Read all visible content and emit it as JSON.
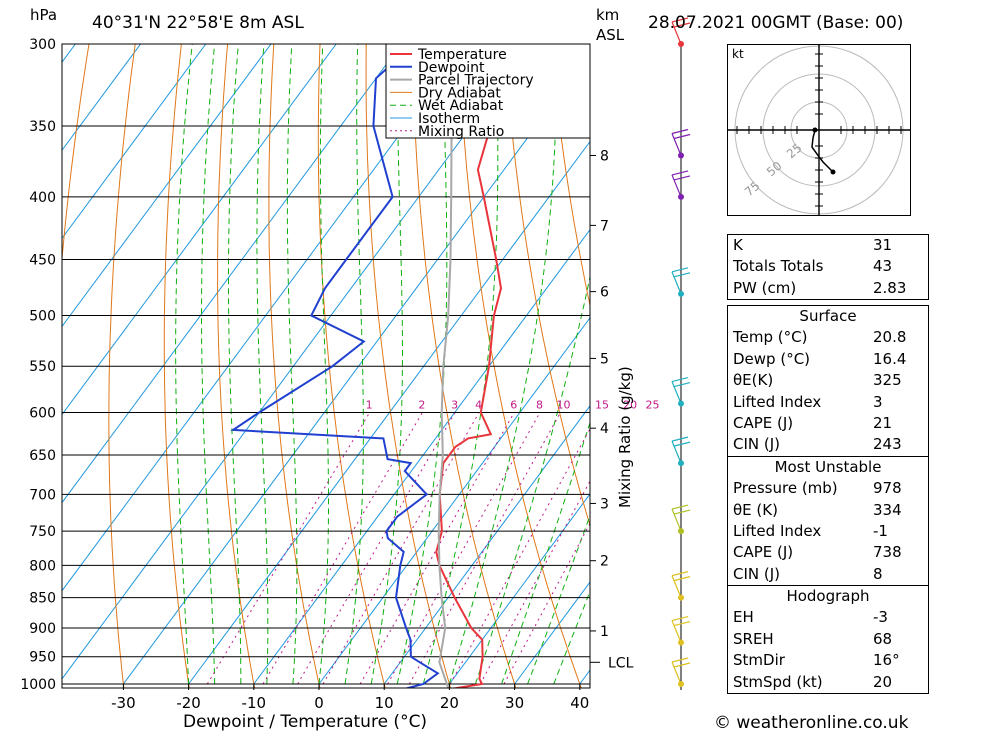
{
  "header": {
    "unit_hpa": "hPa",
    "location": "40°31'N  22°58'E  8m  ASL",
    "unit_km": "km",
    "unit_asl": "ASL",
    "datetime": "28.07.2021  00GMT  (Base: 00)"
  },
  "footer": {
    "copyright": "© weatheronline.co.uk"
  },
  "hodograph": {
    "unit": "kt",
    "ring_labels": [
      "25",
      "50",
      "75"
    ]
  },
  "indices": {
    "k": {
      "label": "K",
      "value": "31"
    },
    "tt": {
      "label": "Totals Totals",
      "value": "43"
    },
    "pw": {
      "label": "PW (cm)",
      "value": "2.83"
    }
  },
  "surface": {
    "title": "Surface",
    "rows": [
      {
        "label": "Temp (°C)",
        "value": "20.8"
      },
      {
        "label": "Dewp (°C)",
        "value": "16.4"
      },
      {
        "label": "θE(K)",
        "value": "325"
      },
      {
        "label": "Lifted Index",
        "value": "3"
      },
      {
        "label": "CAPE (J)",
        "value": "21"
      },
      {
        "label": "CIN (J)",
        "value": "243"
      }
    ]
  },
  "most_unstable": {
    "title": "Most Unstable",
    "rows": [
      {
        "label": "Pressure (mb)",
        "value": "978"
      },
      {
        "label": "θE (K)",
        "value": "334"
      },
      {
        "label": "Lifted Index",
        "value": "-1"
      },
      {
        "label": "CAPE (J)",
        "value": "738"
      },
      {
        "label": "CIN (J)",
        "value": "8"
      }
    ]
  },
  "hodograph_table": {
    "title": "Hodograph",
    "rows": [
      {
        "label": "EH",
        "value": "-3"
      },
      {
        "label": "SREH",
        "value": "68"
      },
      {
        "label": "StmDir",
        "value": "16°"
      },
      {
        "label": "StmSpd (kt)",
        "value": "20"
      }
    ]
  },
  "chart_data": {
    "type": "line",
    "xlabel": "Dewpoint / Temperature (°C)",
    "ylabel": "hPa",
    "right_axis_label": "Mixing Ratio (g/kg)",
    "pressure_ticks": [
      300,
      350,
      400,
      450,
      500,
      550,
      600,
      650,
      700,
      750,
      800,
      850,
      900,
      950,
      1000
    ],
    "temp_ticks": [
      -30,
      -20,
      -10,
      0,
      10,
      20,
      30,
      40
    ],
    "km_ticks": [
      {
        "label": "8",
        "p": 370
      },
      {
        "label": "7",
        "p": 422
      },
      {
        "label": "6",
        "p": 478
      },
      {
        "label": "5",
        "p": 542
      },
      {
        "label": "4",
        "p": 618
      },
      {
        "label": "3",
        "p": 712
      },
      {
        "label": "2",
        "p": 793
      },
      {
        "label": "1",
        "p": 905
      }
    ],
    "lcl": {
      "label": "LCL",
      "p": 960
    },
    "mixing_ratio_labels": [
      "1",
      "2",
      "3",
      "4",
      "6",
      "8",
      "10",
      "15",
      "20",
      "25"
    ],
    "legend": [
      "Temperature",
      "Dewpoint",
      "Parcel Trajectory",
      "Dry Adiabat",
      "Wet Adiabat",
      "Isotherm",
      "Mixing Ratio"
    ],
    "colors": {
      "temperature": "#e8343a",
      "dewpoint": "#2040d0",
      "parcel": "#a8a8a8",
      "dry_adiabat": "#e07818",
      "wet_adiabat": "#10b010",
      "isotherm": "#2098e0",
      "mixing_ratio": "#c01888"
    },
    "series": [
      {
        "name": "Temperature",
        "points": [
          [
            1010,
            20.5
          ],
          [
            1000,
            25
          ],
          [
            990,
            24
          ],
          [
            950,
            22
          ],
          [
            920,
            20
          ],
          [
            900,
            17
          ],
          [
            850,
            11
          ],
          [
            800,
            5
          ],
          [
            780,
            3
          ],
          [
            750,
            1.5
          ],
          [
            700,
            -3
          ],
          [
            660,
            -6
          ],
          [
            640,
            -6
          ],
          [
            630,
            -5
          ],
          [
            625,
            -2
          ],
          [
            600,
            -6
          ],
          [
            550,
            -10
          ],
          [
            500,
            -15
          ],
          [
            475,
            -17
          ],
          [
            450,
            -21
          ],
          [
            400,
            -30
          ],
          [
            380,
            -34
          ],
          [
            350,
            -37
          ],
          [
            330,
            -40
          ],
          [
            300,
            -46
          ]
        ]
      },
      {
        "name": "Dewpoint",
        "points": [
          [
            1010,
            13.5
          ],
          [
            1000,
            16
          ],
          [
            980,
            17
          ],
          [
            960,
            13
          ],
          [
            950,
            11
          ],
          [
            920,
            9
          ],
          [
            900,
            7
          ],
          [
            850,
            2
          ],
          [
            800,
            -1
          ],
          [
            780,
            -2
          ],
          [
            760,
            -6
          ],
          [
            750,
            -7
          ],
          [
            730,
            -7
          ],
          [
            700,
            -5
          ],
          [
            670,
            -11
          ],
          [
            660,
            -11
          ],
          [
            655,
            -15
          ],
          [
            630,
            -18
          ],
          [
            620,
            -42
          ],
          [
            600,
            -40
          ],
          [
            550,
            -34
          ],
          [
            525,
            -32
          ],
          [
            500,
            -43
          ],
          [
            475,
            -44
          ],
          [
            450,
            -44
          ],
          [
            400,
            -44
          ],
          [
            350,
            -55
          ],
          [
            320,
            -60
          ],
          [
            300,
            -58
          ]
        ]
      },
      {
        "name": "Parcel Trajectory",
        "points": [
          [
            1010,
            20.5
          ],
          [
            960,
            16
          ],
          [
            900,
            13
          ],
          [
            850,
            9
          ],
          [
            800,
            5
          ],
          [
            750,
            1
          ],
          [
            700,
            -3
          ],
          [
            650,
            -7
          ],
          [
            600,
            -12
          ],
          [
            550,
            -17
          ],
          [
            500,
            -22
          ],
          [
            450,
            -28
          ],
          [
            400,
            -35
          ],
          [
            350,
            -43
          ],
          [
            300,
            -53
          ]
        ]
      }
    ],
    "wind_barbs": [
      {
        "p": 300,
        "color": "#e8343a"
      },
      {
        "p": 370,
        "color": "#8020b0"
      },
      {
        "p": 400,
        "color": "#8020b0"
      },
      {
        "p": 480,
        "color": "#20b0c0"
      },
      {
        "p": 590,
        "color": "#20b0c0"
      },
      {
        "p": 660,
        "color": "#20b0c0"
      },
      {
        "p": 750,
        "color": "#b0c020"
      },
      {
        "p": 850,
        "color": "#e0c020"
      },
      {
        "p": 925,
        "color": "#e0c020"
      },
      {
        "p": 1000,
        "color": "#e0c020"
      }
    ]
  }
}
